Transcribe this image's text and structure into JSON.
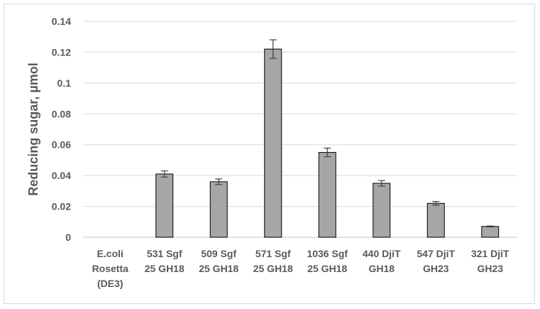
{
  "chart_data": {
    "type": "bar",
    "title": "",
    "xlabel": "",
    "ylabel": "Reducing sugar, µmol",
    "ylim": [
      0,
      0.14
    ],
    "yticks": [
      "0",
      "0.02",
      "0.04",
      "0.06",
      "0.08",
      "0.1",
      "0.12",
      "0.14"
    ],
    "grid": "horizontal",
    "categories": [
      [
        "E.coli",
        "Rosetta",
        "(DE3)"
      ],
      [
        "531 Sgf",
        "25 GH18"
      ],
      [
        "509 Sgf",
        "25 GH18"
      ],
      [
        "571 Sgf",
        "25 GH18"
      ],
      [
        "1036 Sgf",
        "25 GH18"
      ],
      [
        "440 DjiT",
        "GH18"
      ],
      [
        "547 DjiT",
        "GH23"
      ],
      [
        "321 DjiT",
        "GH23"
      ]
    ],
    "values": [
      0,
      0.041,
      0.036,
      0.122,
      0.055,
      0.035,
      0.022,
      0.007
    ],
    "errors": [
      0,
      0.002,
      0.0018,
      0.006,
      0.0028,
      0.0018,
      0.0012,
      0.0003
    ],
    "bar_color": "#a6a6a6",
    "bar_edge_color": "#000000",
    "grid_color": "#d9d9d9",
    "text_color": "#595959"
  }
}
